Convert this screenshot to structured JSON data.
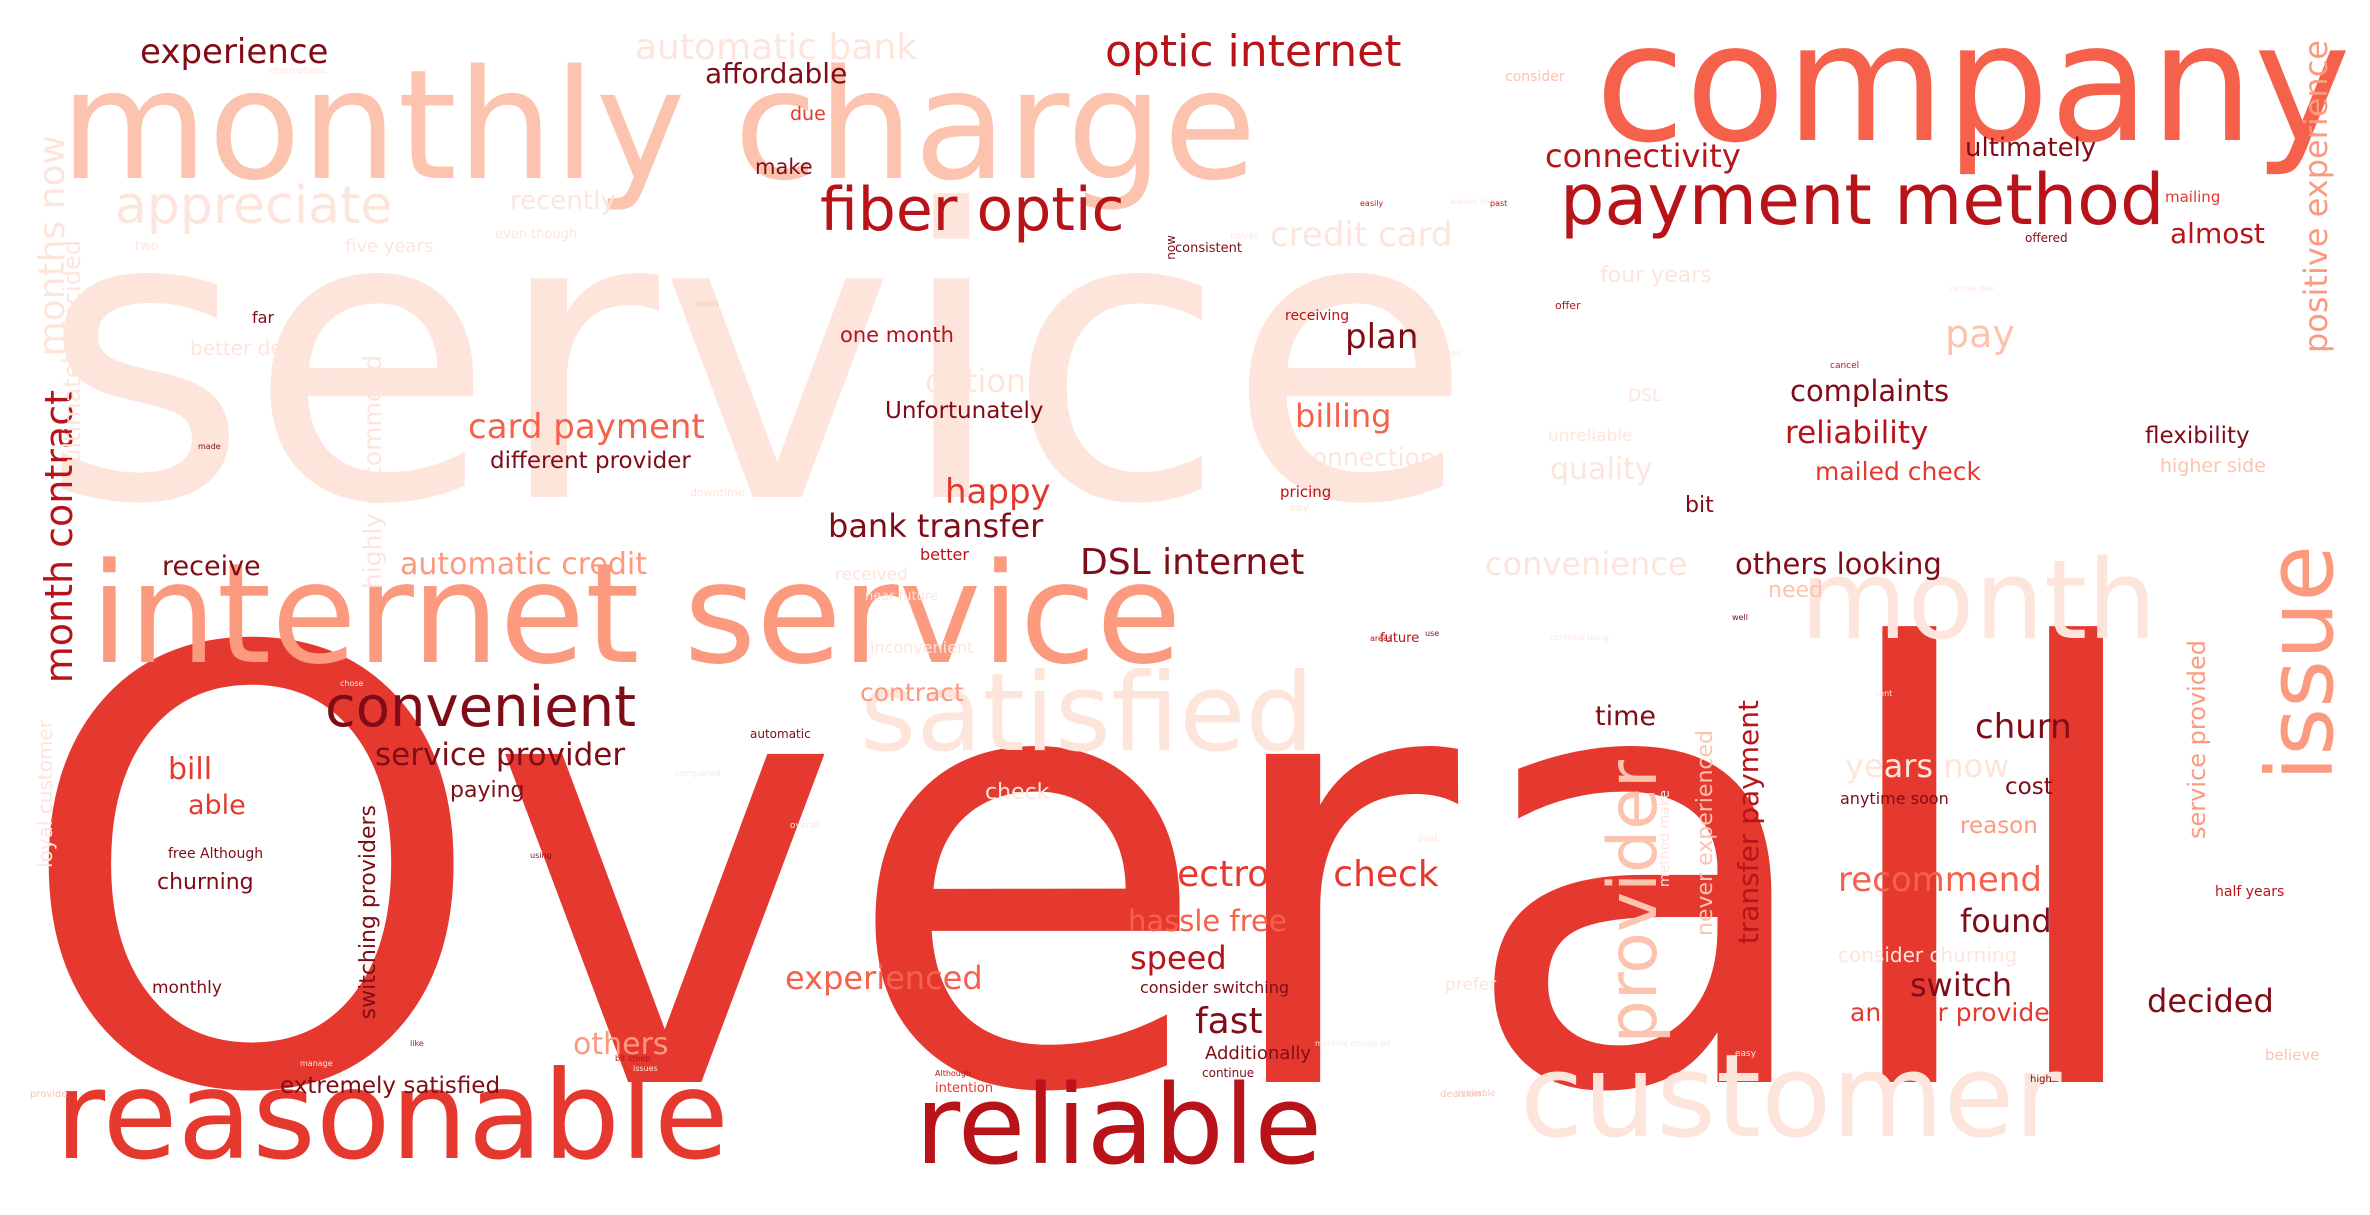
{
  "colors": {
    "c0": "#fee5dc",
    "c1": "#fcc3ae",
    "c2": "#fc9a80",
    "c3": "#f5614b",
    "c4": "#e5392f",
    "c5": "#b71319",
    "c6": "#7f0c17"
  },
  "words": [
    {
      "text": "service",
      "color": "c0"
    },
    {
      "text": "Overall",
      "color": "c4"
    },
    {
      "text": "company",
      "color": "c3"
    },
    {
      "text": "monthly charge",
      "color": "c1"
    },
    {
      "text": "internet service",
      "color": "c2"
    },
    {
      "text": "reasonable",
      "color": "c4"
    },
    {
      "text": "reliable",
      "color": "c5"
    },
    {
      "text": "customer",
      "color": "c0"
    },
    {
      "text": "satisfied",
      "color": "c0"
    },
    {
      "text": "month",
      "color": "c0"
    },
    {
      "text": "issue",
      "color": "c2"
    },
    {
      "text": "payment method",
      "color": "c5"
    },
    {
      "text": "fiber optic",
      "color": "c5"
    },
    {
      "text": "optic internet",
      "color": "c5"
    },
    {
      "text": "convenient",
      "color": "c6"
    },
    {
      "text": "appreciate",
      "color": "c0"
    },
    {
      "text": "provider",
      "color": "c1"
    },
    {
      "text": "positive experience",
      "color": "c2"
    },
    {
      "text": "experience",
      "color": "c6"
    },
    {
      "text": "automatic bank",
      "color": "c0"
    },
    {
      "text": "affordable",
      "color": "c6"
    },
    {
      "text": "connectivity",
      "color": "c5"
    },
    {
      "text": "ultimately",
      "color": "c6"
    },
    {
      "text": "almost",
      "color": "c5"
    },
    {
      "text": "credit card",
      "color": "c0"
    },
    {
      "text": "recently",
      "color": "c0"
    },
    {
      "text": "months now",
      "color": "c0"
    },
    {
      "text": "month contract",
      "color": "c5"
    },
    {
      "text": "ultimately decided",
      "color": "c0"
    },
    {
      "text": "five years",
      "color": "c0"
    },
    {
      "text": "one month",
      "color": "c5"
    },
    {
      "text": "plan",
      "color": "c6"
    },
    {
      "text": "pay",
      "color": "c1"
    },
    {
      "text": "four years",
      "color": "c0"
    },
    {
      "text": "option",
      "color": "c0"
    },
    {
      "text": "better deal",
      "color": "c0"
    },
    {
      "text": "complaints",
      "color": "c6"
    },
    {
      "text": "reliability",
      "color": "c5"
    },
    {
      "text": "flexibility",
      "color": "c6"
    },
    {
      "text": "higher side",
      "color": "c1"
    },
    {
      "text": "mailed check",
      "color": "c4"
    },
    {
      "text": "Unfortunately",
      "color": "c6"
    },
    {
      "text": "card payment",
      "color": "c3"
    },
    {
      "text": "different provider",
      "color": "c6"
    },
    {
      "text": "billing",
      "color": "c3"
    },
    {
      "text": "connection",
      "color": "c0"
    },
    {
      "text": "quality",
      "color": "c0"
    },
    {
      "text": "happy",
      "color": "c4"
    },
    {
      "text": "bank transfer",
      "color": "c6"
    },
    {
      "text": "DSL internet",
      "color": "c6"
    },
    {
      "text": "automatic credit",
      "color": "c2"
    },
    {
      "text": "convenience",
      "color": "c0"
    },
    {
      "text": "others looking",
      "color": "c6"
    },
    {
      "text": "receive",
      "color": "c6"
    },
    {
      "text": "bit",
      "color": "c6"
    },
    {
      "text": "need",
      "color": "c1"
    },
    {
      "text": "highly recommend",
      "color": "c0"
    },
    {
      "text": "DSL",
      "color": "c0"
    },
    {
      "text": "unreliable",
      "color": "c0"
    },
    {
      "text": "time",
      "color": "c6"
    },
    {
      "text": "churn",
      "color": "c6"
    },
    {
      "text": "years now",
      "color": "c0"
    },
    {
      "text": "service provider",
      "color": "c6"
    },
    {
      "text": "bill",
      "color": "c4"
    },
    {
      "text": "able",
      "color": "c4"
    },
    {
      "text": "paying",
      "color": "c6"
    },
    {
      "text": "contract",
      "color": "c2"
    },
    {
      "text": "check",
      "color": "c0"
    },
    {
      "text": "cost",
      "color": "c6"
    },
    {
      "text": "reason",
      "color": "c2"
    },
    {
      "text": "anytime soon",
      "color": "c6"
    },
    {
      "text": "transfer payment",
      "color": "c5"
    },
    {
      "text": "never experienced",
      "color": "c1"
    },
    {
      "text": "method make",
      "color": "c0"
    },
    {
      "text": "service provided",
      "color": "c2"
    },
    {
      "text": "electronic check",
      "color": "c4"
    },
    {
      "text": "recommend",
      "color": "c3"
    },
    {
      "text": "found",
      "color": "c6"
    },
    {
      "text": "hassle free",
      "color": "c3"
    },
    {
      "text": "speed",
      "color": "c5"
    },
    {
      "text": "experienced",
      "color": "c3"
    },
    {
      "text": "switch",
      "color": "c6"
    },
    {
      "text": "decided",
      "color": "c6"
    },
    {
      "text": "another provider",
      "color": "c4"
    },
    {
      "text": "consider churning",
      "color": "c0"
    },
    {
      "text": "fast",
      "color": "c6"
    },
    {
      "text": "others",
      "color": "c2"
    },
    {
      "text": "churning",
      "color": "c6"
    },
    {
      "text": "switching providers",
      "color": "c6"
    },
    {
      "text": "consider switching",
      "color": "c6"
    },
    {
      "text": "monthly",
      "color": "c6"
    },
    {
      "text": "free Although",
      "color": "c6"
    },
    {
      "text": "extremely satisfied",
      "color": "c6"
    },
    {
      "text": "Additionally",
      "color": "c6"
    },
    {
      "text": "slow",
      "color": "c4"
    },
    {
      "text": "prefer",
      "color": "c0"
    },
    {
      "text": "loyal customer",
      "color": "c0"
    },
    {
      "text": "make",
      "color": "c6"
    },
    {
      "text": "due",
      "color": "c4"
    },
    {
      "text": "far",
      "color": "c6"
    },
    {
      "text": "two",
      "color": "c0"
    },
    {
      "text": "consistent",
      "color": "c6"
    },
    {
      "text": "offered",
      "color": "c6"
    },
    {
      "text": "mailing",
      "color": "c4"
    },
    {
      "text": "consider",
      "color": "c1"
    },
    {
      "text": "interruptions",
      "color": "c0"
    },
    {
      "text": "even though",
      "color": "c0"
    },
    {
      "text": "always paid",
      "color": "c0"
    },
    {
      "text": "now",
      "color": "c6"
    },
    {
      "text": "never",
      "color": "c0"
    },
    {
      "text": "receiving",
      "color": "c5"
    },
    {
      "text": "offer",
      "color": "c5"
    },
    {
      "text": "pricing",
      "color": "c5"
    },
    {
      "text": "say",
      "color": "c0"
    },
    {
      "text": "better",
      "color": "c5"
    },
    {
      "text": "received",
      "color": "c0"
    },
    {
      "text": "near future",
      "color": "c0"
    },
    {
      "text": "downtime",
      "color": "c0"
    },
    {
      "text": "inconvenient",
      "color": "c0"
    },
    {
      "text": "future",
      "color": "c5"
    },
    {
      "text": "automatic",
      "color": "c6"
    },
    {
      "text": "compared",
      "color": "c0"
    },
    {
      "text": "intention",
      "color": "c4"
    },
    {
      "text": "continue",
      "color": "c6"
    },
    {
      "text": "high",
      "color": "c6"
    },
    {
      "text": "believe",
      "color": "c1"
    },
    {
      "text": "half years",
      "color": "c5"
    },
    {
      "text": "provide",
      "color": "c1"
    },
    {
      "text": "Although",
      "color": "c5"
    },
    {
      "text": "decision",
      "color": "c1"
    },
    {
      "text": "available",
      "color": "c1"
    },
    {
      "text": "easy",
      "color": "c0"
    },
    {
      "text": "well",
      "color": "c6"
    },
    {
      "text": "cancel",
      "color": "c5"
    },
    {
      "text": "continue using",
      "color": "c0"
    },
    {
      "text": "outages",
      "color": "c0"
    },
    {
      "text": "chose",
      "color": "c0"
    },
    {
      "text": "manage",
      "color": "c0"
    },
    {
      "text": "bit steep",
      "color": "c5"
    },
    {
      "text": "issues",
      "color": "c0"
    },
    {
      "text": "monthly charge bit",
      "color": "c0"
    },
    {
      "text": "areas",
      "color": "c5"
    },
    {
      "text": "paid",
      "color": "c0"
    },
    {
      "text": "past",
      "color": "c5"
    },
    {
      "text": "easily",
      "color": "c5"
    },
    {
      "text": "needs",
      "color": "c1"
    },
    {
      "text": "made",
      "color": "c6"
    },
    {
      "text": "use",
      "color": "c6"
    },
    {
      "text": "using",
      "color": "c6"
    },
    {
      "text": "like",
      "color": "c5"
    },
    {
      "text": "cancel due",
      "color": "c0"
    },
    {
      "text": "sent",
      "color": "c0"
    },
    {
      "text": "overall",
      "color": "c0"
    }
  ]
}
